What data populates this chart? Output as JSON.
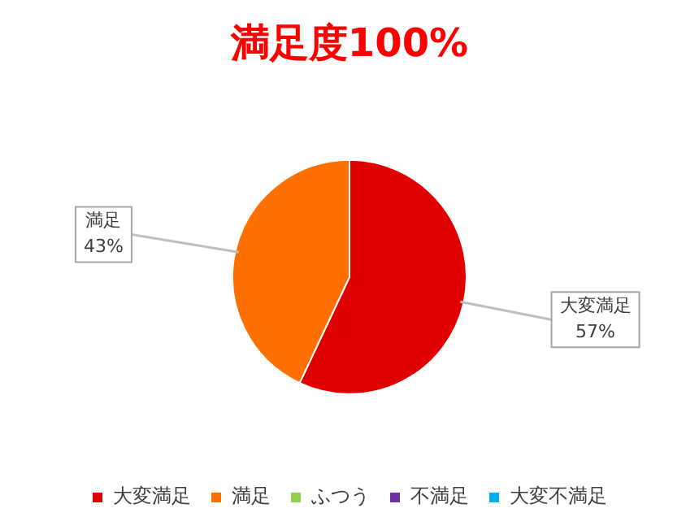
{
  "chart_data": {
    "type": "pie",
    "title": "満足度100%",
    "categories": [
      "大変満足",
      "満足",
      "ふつう",
      "不満足",
      "大変不満足"
    ],
    "values": [
      57,
      43,
      0,
      0,
      0
    ],
    "colors": [
      "#e00000",
      "#ff7000",
      "#92d050",
      "#7030a0",
      "#00b0f0"
    ],
    "value_labels": [
      "57%",
      "43%",
      null,
      null,
      null
    ],
    "legend": "bottom"
  }
}
